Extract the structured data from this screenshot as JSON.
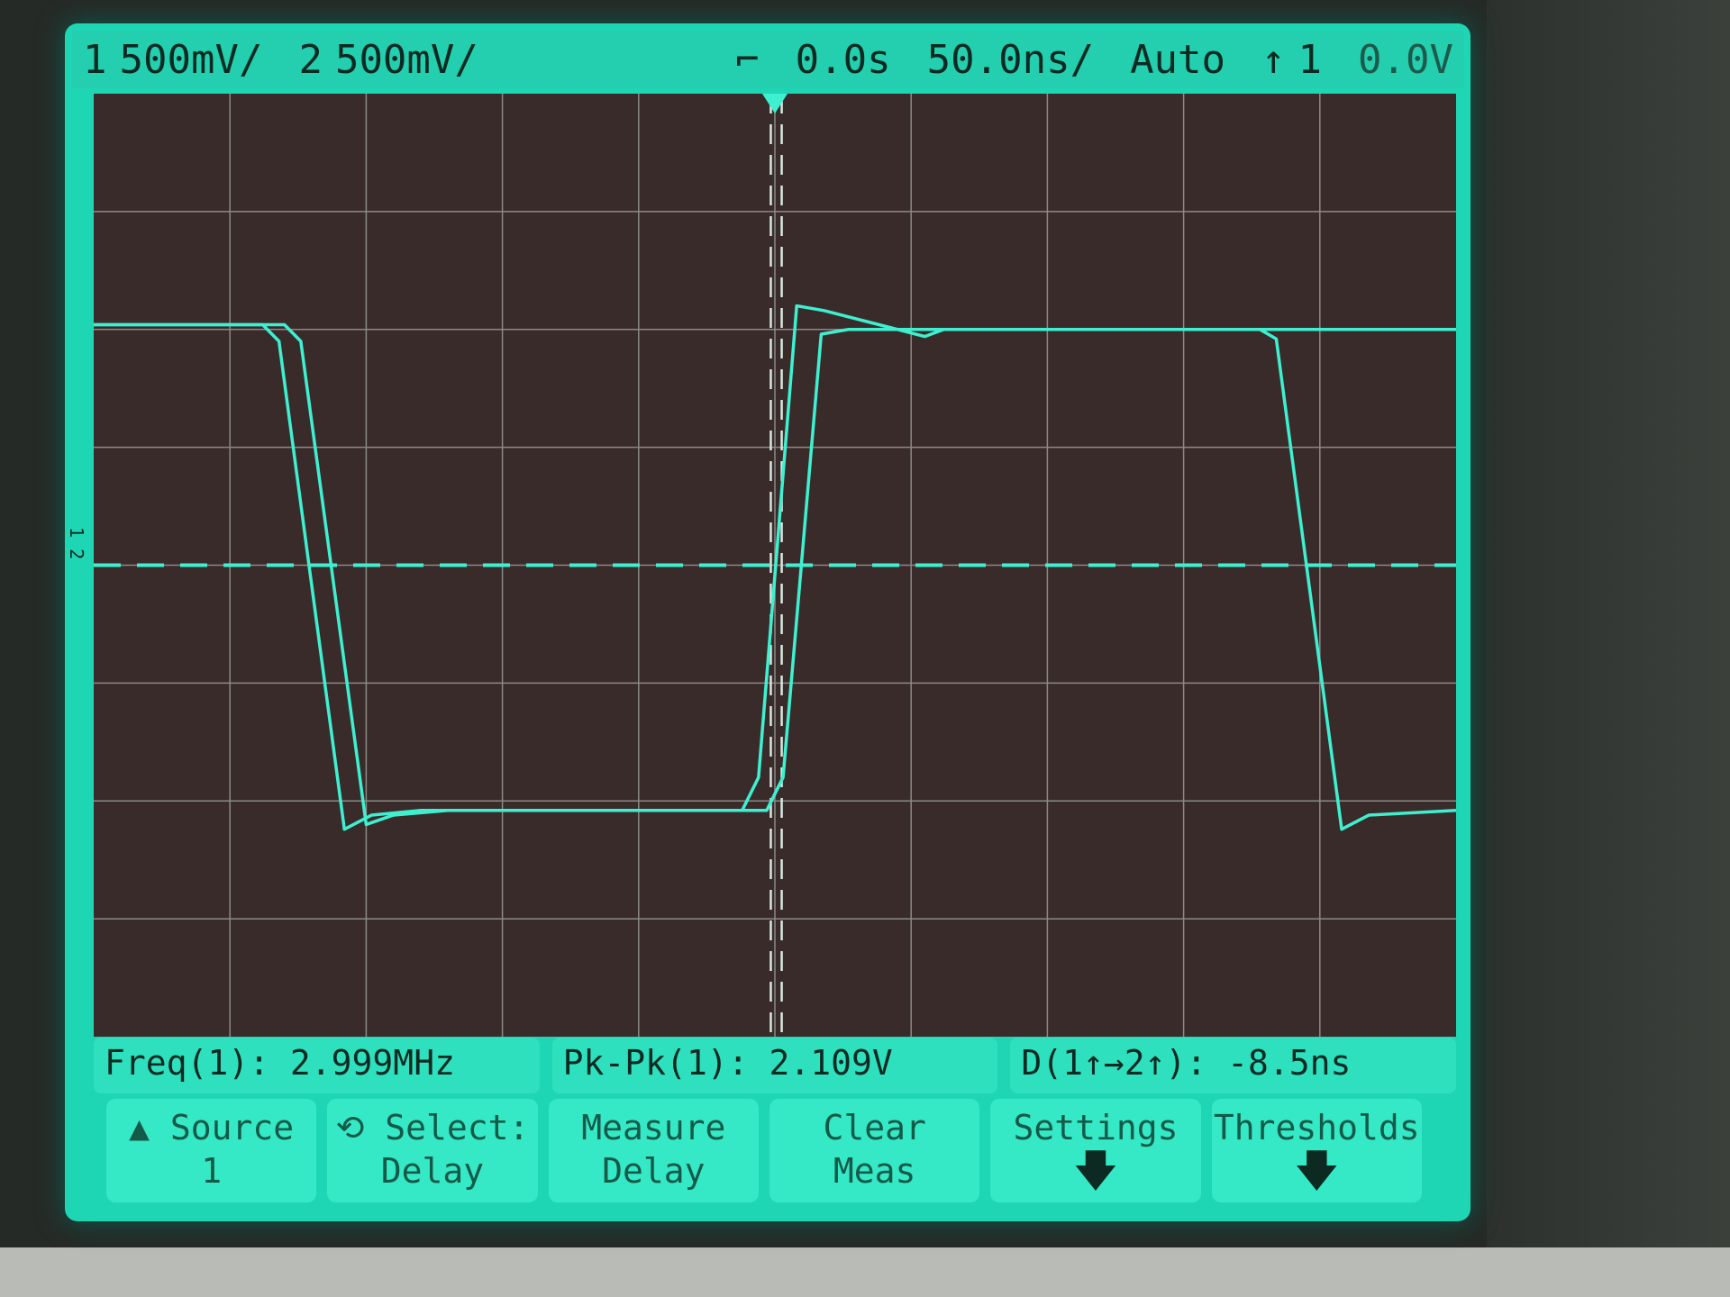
{
  "status_bar": {
    "ch1_label": "1",
    "ch1_scale": "500mV/",
    "ch2_label": "2",
    "ch2_scale": "500mV/",
    "trigger_marker": "⌐",
    "time_delay": "0.0s",
    "time_scale": "50.0ns/",
    "trigger_mode": "Auto",
    "trigger_slope": "↑",
    "trigger_source": "1",
    "trigger_level": "0.0V"
  },
  "ground_marker": "1 2",
  "measurements": [
    {
      "label": "Freq(1):",
      "value": "2.999MHz"
    },
    {
      "label": "Pk-Pk(1):",
      "value": "2.109V"
    },
    {
      "label": "D(1↑→2↑):",
      "value": "-8.5ns"
    }
  ],
  "softkeys": [
    {
      "line1": "▲ Source",
      "line2": "1"
    },
    {
      "line1": "⟲ Select:",
      "line2": "Delay"
    },
    {
      "line1": "Measure",
      "line2": "Delay"
    },
    {
      "line1": "Clear",
      "line2": "Meas"
    },
    {
      "line1": "Settings",
      "line2": "🡇"
    },
    {
      "line1": "Thresholds",
      "line2": "🡇"
    }
  ],
  "colors": {
    "trace": "#3ef0d0",
    "graticule": "#8a8a86",
    "screen": "#1fd6b4",
    "grid_bg": "#3a2b2b"
  },
  "graticule": {
    "h_divisions": 10,
    "v_divisions": 8,
    "volts_per_div": 0.5,
    "ns_per_div": 50
  },
  "traces": [
    {
      "channel": "1",
      "points_ns_v": [
        [
          -250,
          1.02
        ],
        [
          -188,
          1.02
        ],
        [
          -182,
          0.95
        ],
        [
          -158,
          -1.12
        ],
        [
          -148,
          -1.06
        ],
        [
          -130,
          -1.04
        ],
        [
          -12,
          -1.04
        ],
        [
          -6,
          -0.9
        ],
        [
          8,
          1.1
        ],
        [
          18,
          1.08
        ],
        [
          45,
          1.0
        ],
        [
          55,
          0.97
        ],
        [
          62,
          1.0
        ],
        [
          178,
          1.0
        ],
        [
          184,
          0.96
        ],
        [
          208,
          -1.12
        ],
        [
          218,
          -1.06
        ],
        [
          250,
          -1.04
        ]
      ]
    },
    {
      "channel": "2",
      "points_ns_v": [
        [
          -250,
          1.02
        ],
        [
          -180,
          1.02
        ],
        [
          -174,
          0.95
        ],
        [
          -150,
          -1.1
        ],
        [
          -140,
          -1.06
        ],
        [
          -120,
          -1.04
        ],
        [
          -3,
          -1.04
        ],
        [
          3,
          -0.9
        ],
        [
          17,
          0.98
        ],
        [
          27,
          1.0
        ],
        [
          250,
          1.0
        ]
      ]
    }
  ],
  "cursors_ns": [
    -1.5,
    2.5
  ]
}
